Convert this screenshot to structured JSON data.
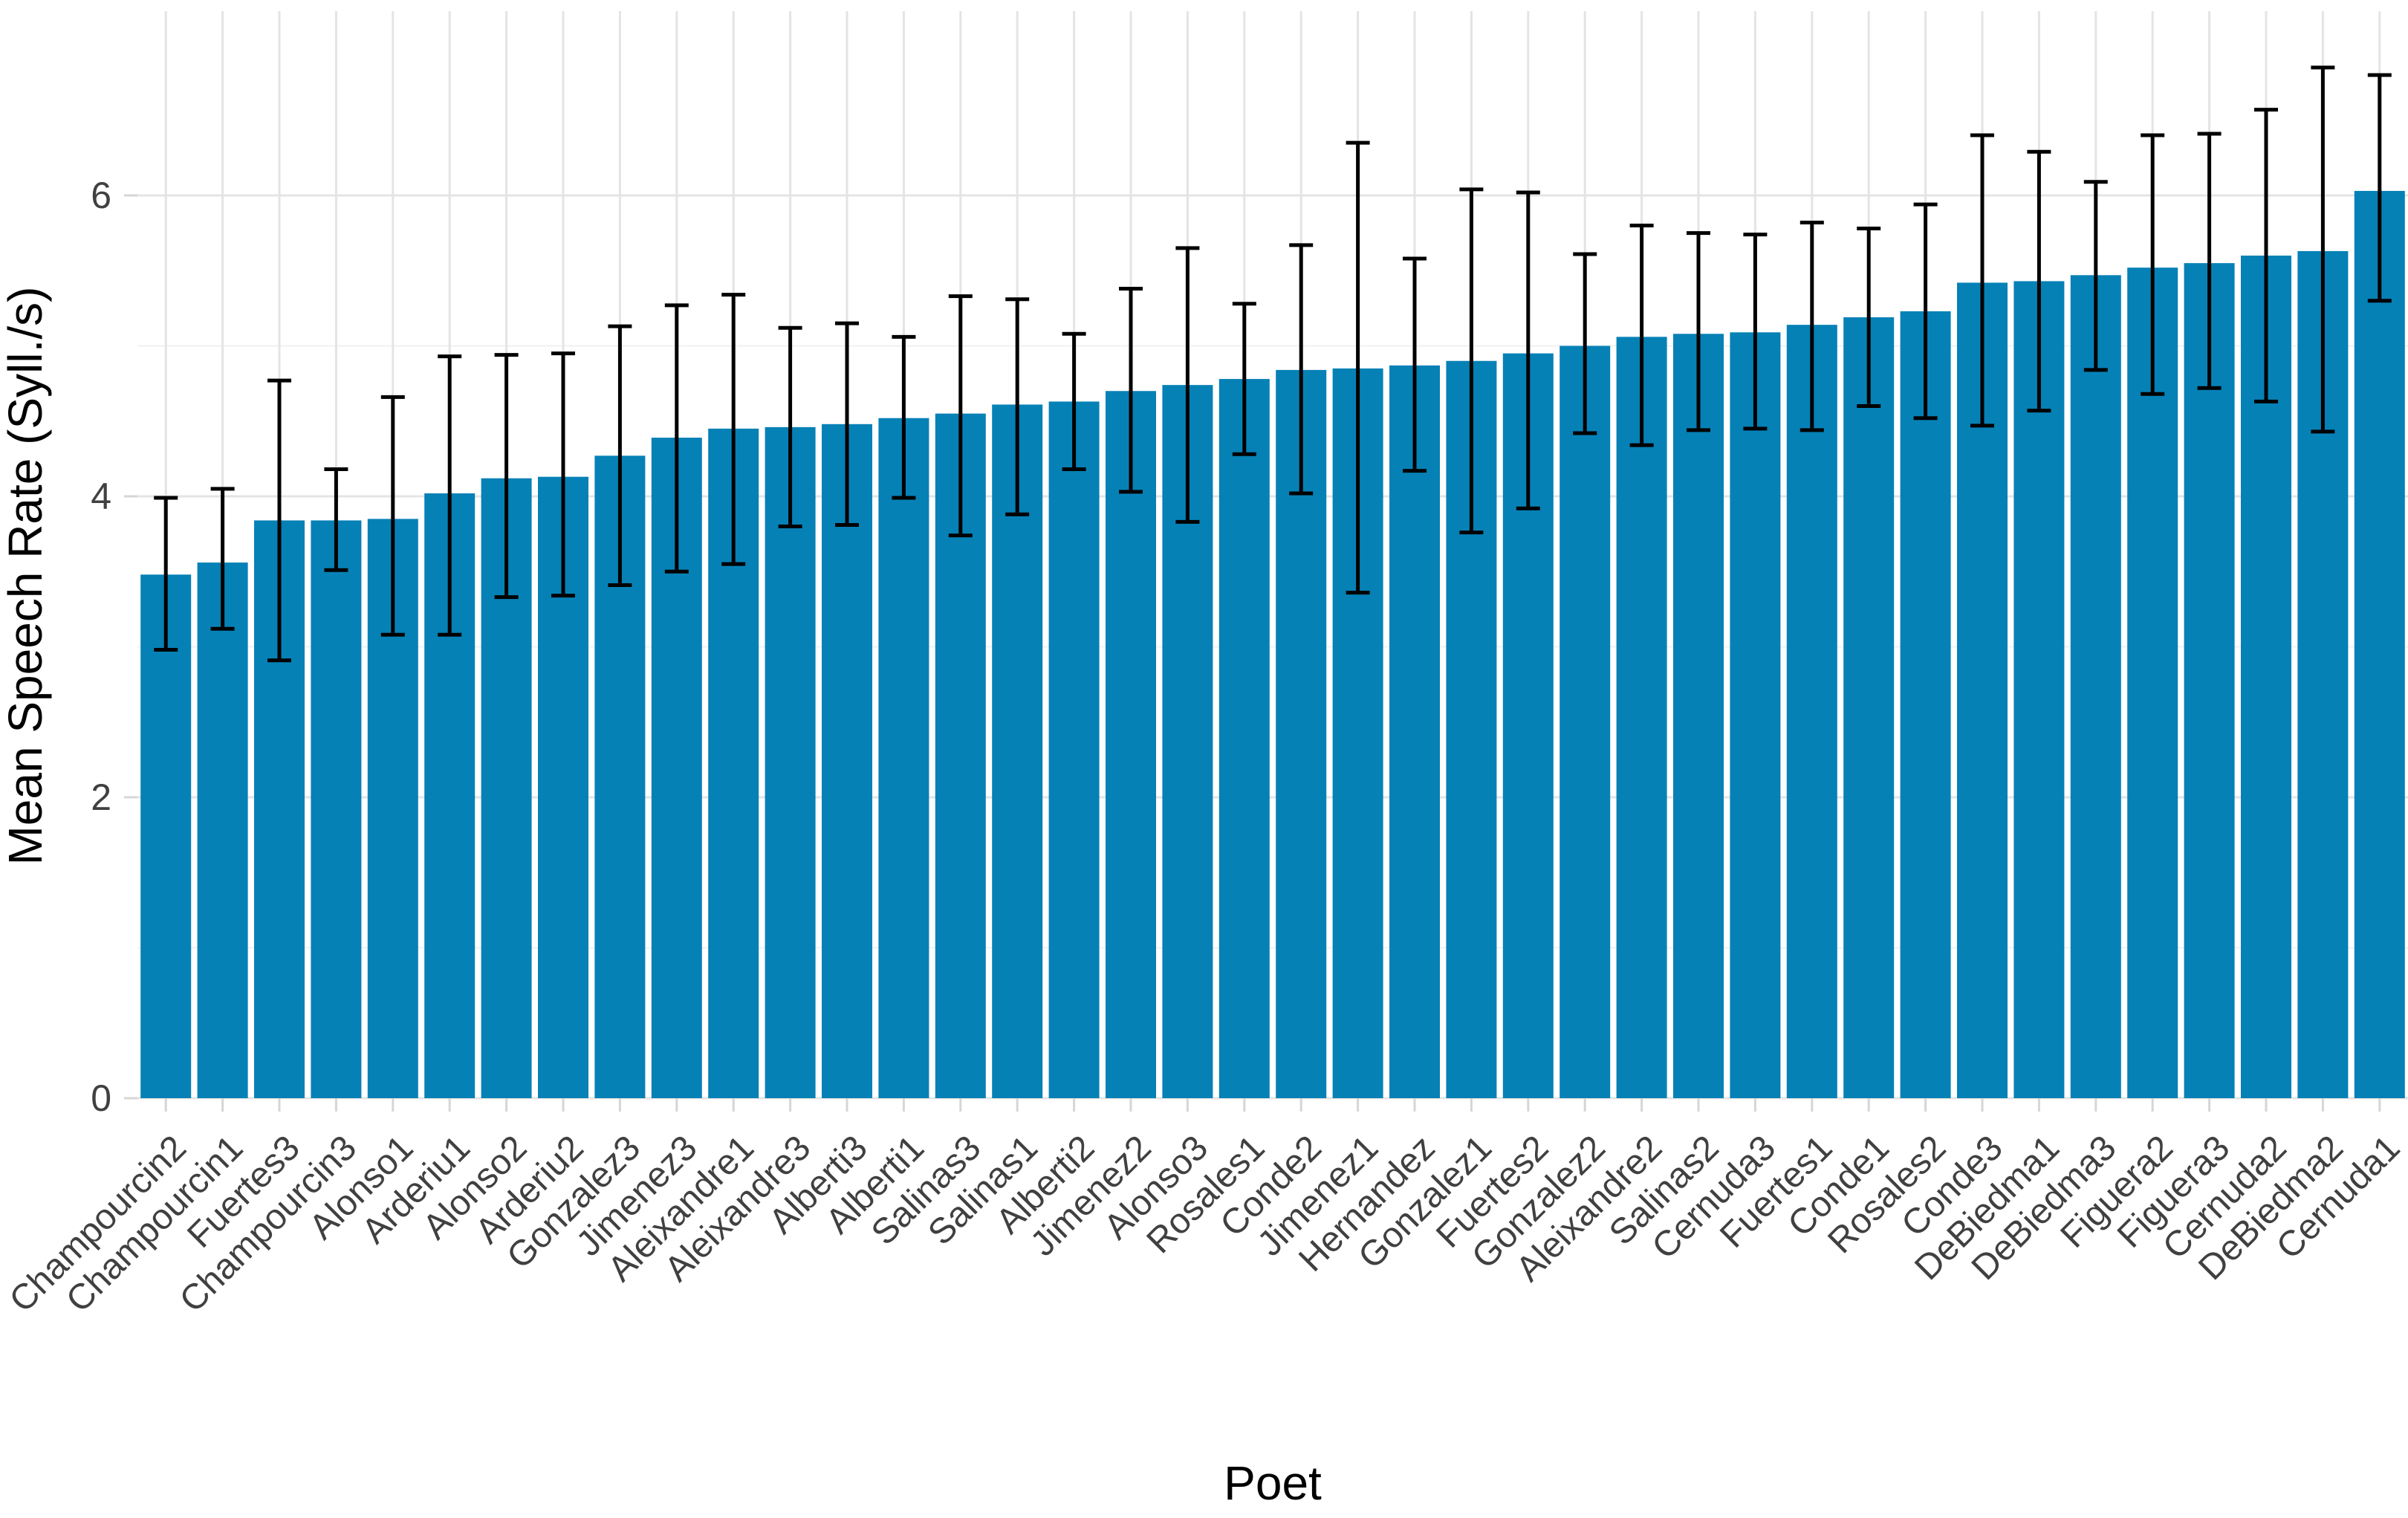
{
  "chart_data": {
    "type": "bar",
    "title": "",
    "xlabel": "Poet",
    "ylabel": "Mean Speech Rate (Syll./s)",
    "ylim": [
      0,
      7.0
    ],
    "yticks": [
      0,
      2,
      4,
      6
    ],
    "yticks_minor": [
      1,
      3,
      5
    ],
    "grid": "on",
    "legend": "none",
    "bar_color": "#0681b6",
    "errorbar_color": "#000000",
    "major_grid_color": "#e4e4e4",
    "minor_grid_color": "#f0f0f0",
    "tick_mark_color": "#d6d6d6",
    "tick_label_color": "#404040",
    "axis_title_color": "#000000",
    "categories": [
      "Champourcin2",
      "Champourcin1",
      "Fuertes3",
      "Champourcin3",
      "Alonso1",
      "Arderiu1",
      "Alonso2",
      "Arderiu2",
      "Gonzalez3",
      "Jimenez3",
      "Aleixandre1",
      "Aleixandre3",
      "Alberti3",
      "Alberti1",
      "Salinas3",
      "Salinas1",
      "Alberti2",
      "Jimenez2",
      "Alonso3",
      "Rosales1",
      "Conde2",
      "Jimenez1",
      "Hernandez",
      "Gonzalez1",
      "Fuertes2",
      "Gonzalez2",
      "Aleixandre2",
      "Salinas2",
      "Cernuda3",
      "Fuertes1",
      "Conde1",
      "Rosales2",
      "Conde3",
      "DeBiedma1",
      "DeBiedma3",
      "Figuera2",
      "Figuera3",
      "Cernuda2",
      "DeBiedma2",
      "Cernuda1"
    ],
    "values": [
      3.48,
      3.56,
      3.84,
      3.84,
      3.85,
      4.02,
      4.12,
      4.13,
      4.27,
      4.39,
      4.45,
      4.46,
      4.48,
      4.52,
      4.55,
      4.61,
      4.63,
      4.7,
      4.74,
      4.78,
      4.84,
      4.85,
      4.87,
      4.9,
      4.95,
      5.0,
      5.06,
      5.08,
      5.09,
      5.14,
      5.19,
      5.23,
      5.42,
      5.43,
      5.47,
      5.52,
      5.55,
      5.6,
      5.63,
      6.03
    ],
    "error_low": [
      2.98,
      3.12,
      2.91,
      3.51,
      3.08,
      3.08,
      3.33,
      3.34,
      3.41,
      3.5,
      3.55,
      3.8,
      3.81,
      3.99,
      3.74,
      3.88,
      4.18,
      4.03,
      3.83,
      4.28,
      4.02,
      3.36,
      4.17,
      3.76,
      3.92,
      4.42,
      4.34,
      4.44,
      4.45,
      4.44,
      4.6,
      4.52,
      4.47,
      4.57,
      4.84,
      4.68,
      4.72,
      4.63,
      4.43,
      5.3
    ],
    "error_high": [
      3.99,
      4.05,
      4.77,
      4.18,
      4.66,
      4.93,
      4.94,
      4.95,
      5.13,
      5.27,
      5.34,
      5.12,
      5.15,
      5.06,
      5.33,
      5.31,
      5.08,
      5.38,
      5.65,
      5.28,
      5.67,
      6.35,
      5.58,
      6.04,
      6.02,
      5.61,
      5.8,
      5.75,
      5.74,
      5.82,
      5.78,
      5.94,
      6.4,
      6.29,
      6.09,
      6.4,
      6.41,
      6.57,
      6.85,
      6.8
    ]
  }
}
